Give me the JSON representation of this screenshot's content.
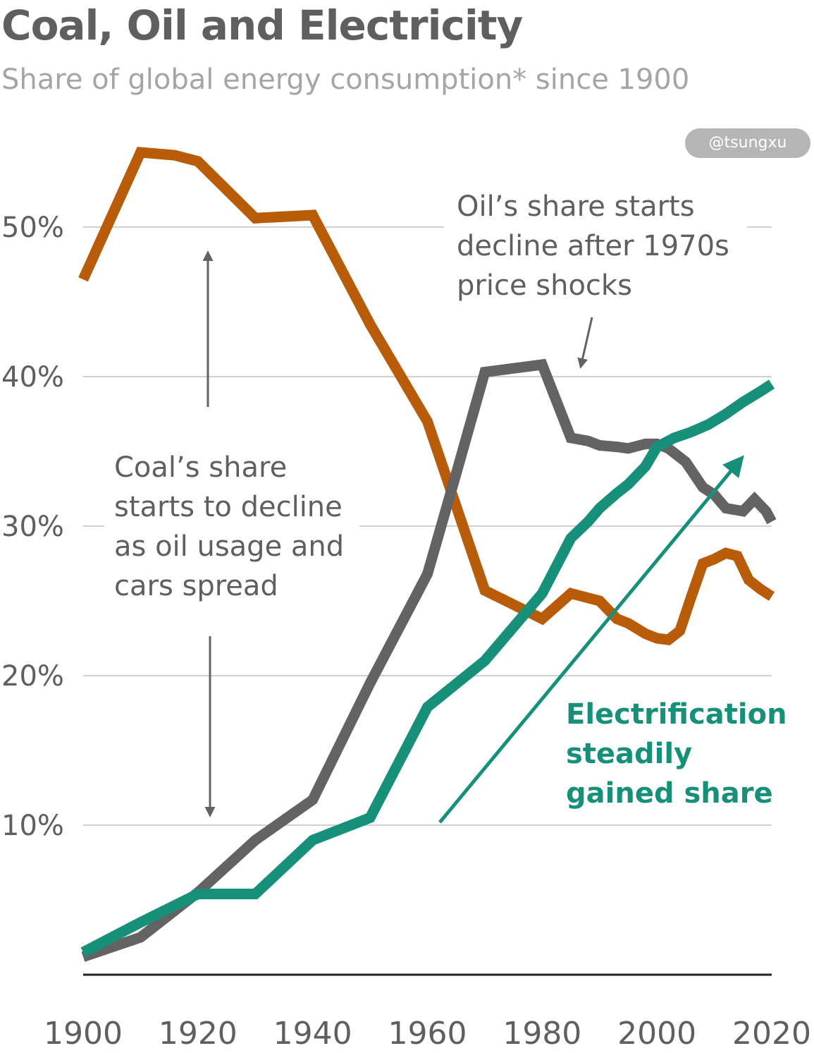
{
  "title": "Coal, Oil and Electricity",
  "subtitle": "Share of global energy consumption* since 1900",
  "watermark": "@tsungxu",
  "annotations": {
    "oil_note": [
      "Oil’s share starts",
      "decline after 1970s",
      "price shocks"
    ],
    "coal_note": [
      "Coal’s share",
      "starts to decline",
      "as oil usage and",
      "cars spread"
    ],
    "electric_note": [
      "Electrification",
      "steadily",
      "gained share"
    ]
  },
  "colors": {
    "coal": "#b85c0a",
    "oil": "#636363",
    "electricity": "#17907a",
    "grid": "#d0d0d0",
    "axis": "#222222",
    "text": "#5f5f5f"
  },
  "chart_data": {
    "type": "line",
    "title": "Coal, Oil and Electricity",
    "subtitle": "Share of global energy consumption* since 1900",
    "xlabel": "",
    "ylabel": "",
    "xlim": [
      1900,
      2020
    ],
    "ylim": [
      0,
      60
    ],
    "xticks": [
      1900,
      1920,
      1940,
      1960,
      1980,
      2000,
      2020
    ],
    "yticks": [
      10,
      20,
      30,
      40,
      50
    ],
    "ytick_labels": [
      "10%",
      "20%",
      "30%",
      "40%",
      "50%"
    ],
    "grid": true,
    "series": [
      {
        "name": "Coal",
        "key": "coal",
        "x": [
          1900,
          1910,
          1916,
          1920,
          1930,
          1940,
          1950,
          1960,
          1970,
          1980,
          1985,
          1988,
          1990,
          1993,
          1995,
          1998,
          2000,
          2002,
          2004,
          2006,
          2008,
          2010,
          2012,
          2014,
          2016,
          2018,
          2020
        ],
        "y": [
          46.5,
          55,
          54.8,
          54.4,
          50.6,
          50.8,
          43.5,
          37,
          25.7,
          23.8,
          25.5,
          25.2,
          25,
          23.8,
          23.5,
          22.8,
          22.5,
          22.4,
          23,
          25.3,
          27.5,
          27.8,
          28.2,
          28,
          26.4,
          25.8,
          25.3
        ]
      },
      {
        "name": "Oil",
        "key": "oil",
        "x": [
          1900,
          1910,
          1920,
          1930,
          1940,
          1950,
          1960,
          1965,
          1970,
          1980,
          1985,
          1988,
          1990,
          1993,
          1995,
          1998,
          2000,
          2002,
          2005,
          2008,
          2010,
          2012,
          2015,
          2017,
          2019,
          2020
        ],
        "y": [
          1.2,
          2.5,
          5.5,
          9,
          11.7,
          19.5,
          26.8,
          33.5,
          40.3,
          40.8,
          35.9,
          35.7,
          35.4,
          35.3,
          35.2,
          35.5,
          35.5,
          35.2,
          34.3,
          32.6,
          32.1,
          31.2,
          31,
          31.8,
          31,
          30.3
        ]
      },
      {
        "name": "Electricity",
        "key": "electricity",
        "x": [
          1900,
          1910,
          1920,
          1930,
          1940,
          1950,
          1960,
          1970,
          1980,
          1985,
          1988,
          1990,
          1993,
          1995,
          1998,
          2000,
          2003,
          2006,
          2009,
          2012,
          2015,
          2018,
          2020
        ],
        "y": [
          1.5,
          3.5,
          5.4,
          5.4,
          9,
          10.5,
          17.9,
          21,
          25.5,
          29.2,
          30.3,
          31.2,
          32.2,
          32.8,
          34,
          35.3,
          35.9,
          36.3,
          36.8,
          37.5,
          38.3,
          39,
          39.5
        ]
      }
    ]
  }
}
